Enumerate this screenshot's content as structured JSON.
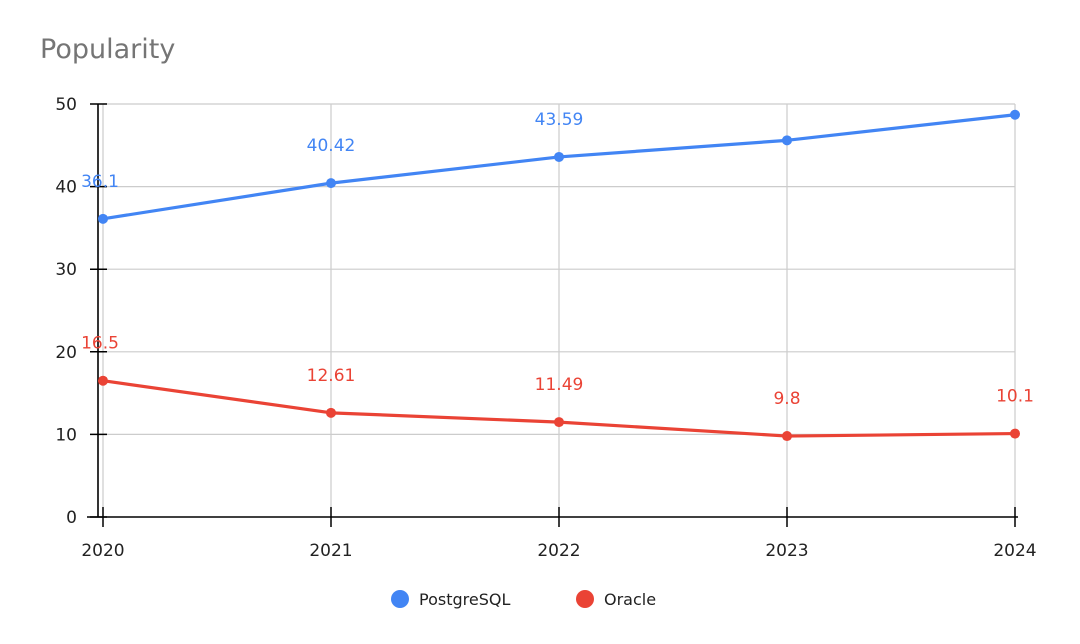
{
  "chart_data": {
    "type": "line",
    "title": "Popularity",
    "xlabel": "",
    "ylabel": "",
    "x": [
      "2020",
      "2021",
      "2022",
      "2023",
      "2024"
    ],
    "ylim": [
      0,
      50
    ],
    "yticks": [
      0,
      10,
      20,
      30,
      40,
      50
    ],
    "grid": true,
    "legend_position": "bottom",
    "series": [
      {
        "name": "PostgreSQL",
        "color": "#4285f4",
        "values": [
          36.1,
          40.42,
          43.59,
          45.6,
          48.7
        ],
        "labels": [
          "36.1",
          "40.42",
          "43.59",
          null,
          null
        ]
      },
      {
        "name": "Oracle",
        "color": "#ea4335",
        "values": [
          16.5,
          12.61,
          11.49,
          9.8,
          10.1
        ],
        "labels": [
          "16.5",
          "12.61",
          "11.49",
          "9.8",
          "10.1"
        ]
      }
    ]
  }
}
